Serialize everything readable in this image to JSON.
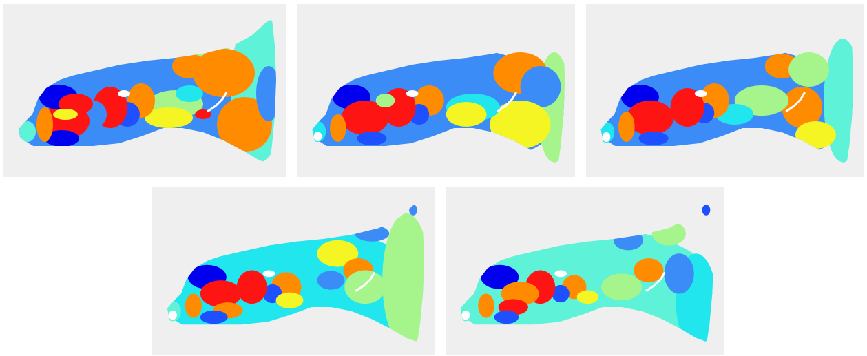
{
  "colors": {
    "background": "#efefef",
    "blue_dark": "#0000ee",
    "blue": "#1e50ff",
    "blue_mid": "#3b8cf7",
    "cyan": "#22e6ee",
    "aqua": "#5ef2d8",
    "green_light": "#a6f58c",
    "yellow": "#f5f523",
    "orange": "#ff8c00",
    "red": "#ff1414",
    "white": "#ffffff"
  },
  "panels": [
    {
      "id": "map-1"
    },
    {
      "id": "map-2"
    },
    {
      "id": "map-3"
    },
    {
      "id": "map-4"
    },
    {
      "id": "map-5"
    }
  ]
}
